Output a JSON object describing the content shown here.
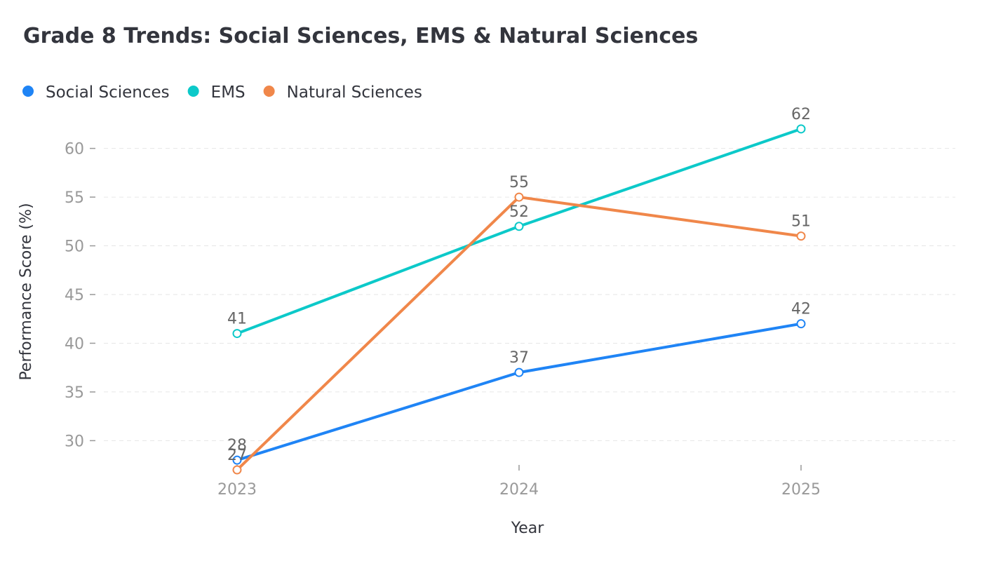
{
  "chart_data": {
    "type": "line",
    "title": "Grade 8 Trends: Social Sciences, EMS & Natural Sciences",
    "xlabel": "Year",
    "ylabel": "Performance Score (%)",
    "categories": [
      "2023",
      "2024",
      "2025"
    ],
    "y_ticks": [
      30,
      35,
      40,
      45,
      50,
      55,
      60
    ],
    "ylim": [
      26.5,
      63.5
    ],
    "grid": "horizontal dashed",
    "legend_position": "top-left",
    "series": [
      {
        "name": "Social Sciences",
        "values": [
          28,
          37,
          42
        ],
        "color": "#1f84f5"
      },
      {
        "name": "EMS",
        "values": [
          41,
          52,
          62
        ],
        "color": "#0cc9c9"
      },
      {
        "name": "Natural Sciences",
        "values": [
          27,
          55,
          51
        ],
        "color": "#f0874a"
      }
    ]
  }
}
